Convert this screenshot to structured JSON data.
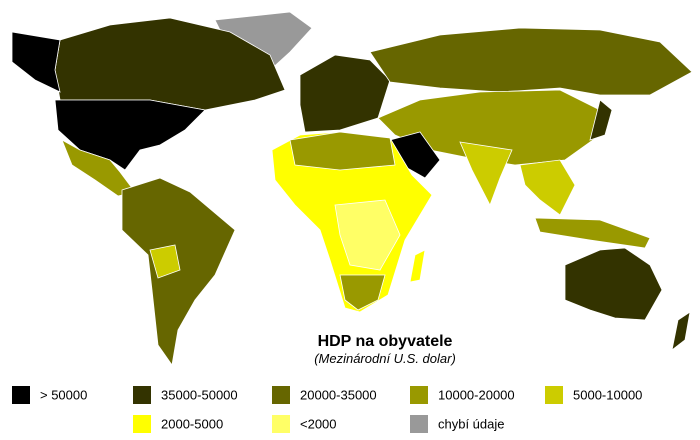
{
  "title": "HDP na obyvatele",
  "subtitle": "(Mezinárodní U.S. dolar)",
  "legend": [
    {
      "label": "> 50000",
      "color": "#000000"
    },
    {
      "label": "35000-50000",
      "color": "#333300"
    },
    {
      "label": "20000-35000",
      "color": "#666600"
    },
    {
      "label": "10000-20000",
      "color": "#999900"
    },
    {
      "label": "5000-10000",
      "color": "#cccc00"
    },
    {
      "label": "2000-5000",
      "color": "#ffff00"
    },
    {
      "label": "<2000",
      "color": "#ffff66"
    },
    {
      "label": "chybí údaje",
      "color": "#999999"
    }
  ]
}
